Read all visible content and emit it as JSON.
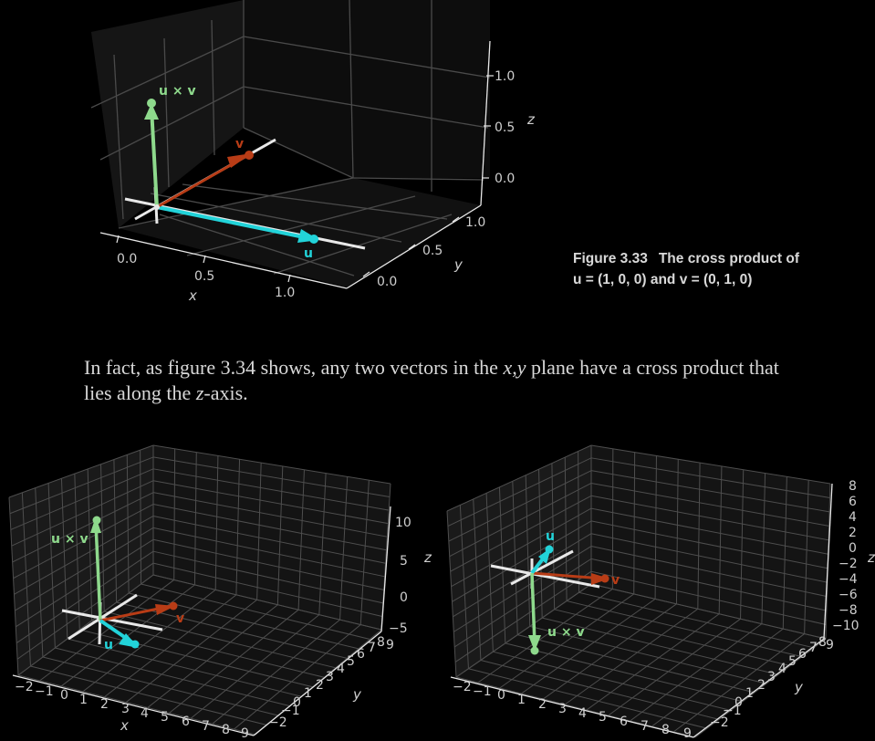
{
  "figure1": {
    "caption_number": "Figure 3.33",
    "caption_line1": "The cross product of",
    "caption_line2": "u = (1, 0, 0) and v = (0, 1, 0)",
    "x_ticks": [
      "0.0",
      "0.5",
      "1.0"
    ],
    "y_ticks": [
      "0.0",
      "0.5",
      "1.0"
    ],
    "z_ticks": [
      "0.0",
      "0.5",
      "1.0"
    ],
    "xlabel": "x",
    "ylabel": "y",
    "zlabel": "z",
    "vectors": [
      {
        "label": "u",
        "value": [
          1,
          0,
          0
        ],
        "color": "#22d3d9"
      },
      {
        "label": "v",
        "value": [
          0,
          1,
          0
        ],
        "color": "#b83c16"
      },
      {
        "label": "u × v",
        "value": [
          0,
          0,
          1
        ],
        "color": "#8ed98c"
      }
    ]
  },
  "paragraph": {
    "part1": "In fact, as figure 3.34 shows, any two vectors in the ",
    "xy": "x,y",
    "part2": " plane have a cross product that",
    "part3": "lies along the ",
    "z": "z",
    "part4": "-axis."
  },
  "figure2": {
    "x_ticks": [
      "−2",
      "−1",
      "0",
      "1",
      "2",
      "3",
      "4",
      "5",
      "6",
      "7",
      "8",
      "9"
    ],
    "y_ticks": [
      "−2",
      "−1",
      "0",
      "1",
      "2",
      "3",
      "4",
      "5",
      "6",
      "7",
      "8",
      "9"
    ],
    "z_ticks": [
      "10",
      "5",
      "0",
      "−5"
    ],
    "xlabel": "x",
    "ylabel": "y",
    "zlabel": "z",
    "labels": {
      "u": "u",
      "v": "v",
      "cross": "u × v"
    }
  },
  "figure3": {
    "x_ticks": [
      "−2",
      "−1",
      "0",
      "1",
      "2",
      "3",
      "4",
      "5",
      "6",
      "7",
      "8",
      "9"
    ],
    "y_ticks": [
      "−2",
      "−1",
      "0",
      "1",
      "2",
      "3",
      "4",
      "5",
      "6",
      "7",
      "8",
      "9"
    ],
    "z_ticks": [
      "8",
      "6",
      "4",
      "2",
      "0",
      "−2",
      "−4",
      "−6",
      "−8",
      "−10"
    ],
    "xlabel": "x",
    "ylabel": "y",
    "zlabel": "z",
    "labels": {
      "u": "u",
      "v": "v",
      "cross": "u × v"
    }
  },
  "colors": {
    "u": "#22d3d9",
    "v": "#b83c16",
    "cross": "#8ed98c",
    "axis": "#e8e8e8",
    "grid": "#5a5a5a"
  }
}
